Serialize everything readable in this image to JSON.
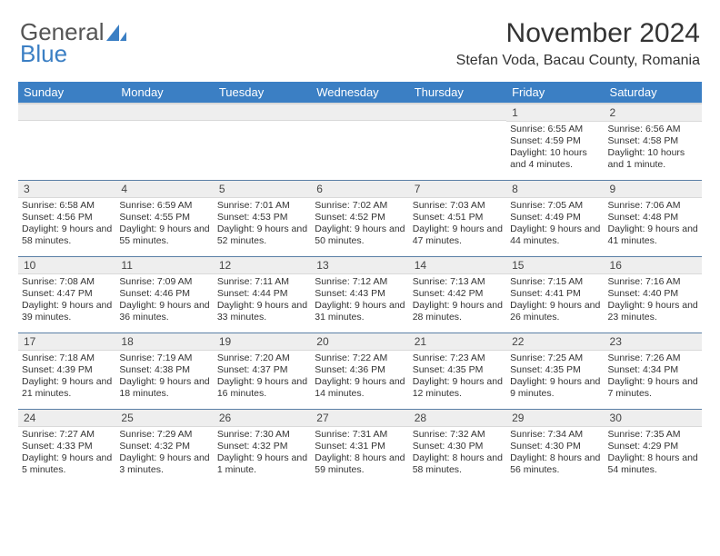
{
  "brand": {
    "part1": "General",
    "part2": "Blue"
  },
  "title": "November 2024",
  "location": "Stefan Voda, Bacau County, Romania",
  "colors": {
    "header_bg": "#3b7fc4",
    "header_text": "#ffffff",
    "daynum_bg": "#eeeeee",
    "row_divider": "#5a7fa6",
    "body_text": "#333333"
  },
  "dayHeaders": [
    "Sunday",
    "Monday",
    "Tuesday",
    "Wednesday",
    "Thursday",
    "Friday",
    "Saturday"
  ],
  "weeks": [
    [
      {
        "blank": true
      },
      {
        "blank": true
      },
      {
        "blank": true
      },
      {
        "blank": true
      },
      {
        "blank": true
      },
      {
        "num": "1",
        "sunrise": "6:55 AM",
        "sunset": "4:59 PM",
        "daylight": "10 hours and 4 minutes."
      },
      {
        "num": "2",
        "sunrise": "6:56 AM",
        "sunset": "4:58 PM",
        "daylight": "10 hours and 1 minute."
      }
    ],
    [
      {
        "num": "3",
        "sunrise": "6:58 AM",
        "sunset": "4:56 PM",
        "daylight": "9 hours and 58 minutes."
      },
      {
        "num": "4",
        "sunrise": "6:59 AM",
        "sunset": "4:55 PM",
        "daylight": "9 hours and 55 minutes."
      },
      {
        "num": "5",
        "sunrise": "7:01 AM",
        "sunset": "4:53 PM",
        "daylight": "9 hours and 52 minutes."
      },
      {
        "num": "6",
        "sunrise": "7:02 AM",
        "sunset": "4:52 PM",
        "daylight": "9 hours and 50 minutes."
      },
      {
        "num": "7",
        "sunrise": "7:03 AM",
        "sunset": "4:51 PM",
        "daylight": "9 hours and 47 minutes."
      },
      {
        "num": "8",
        "sunrise": "7:05 AM",
        "sunset": "4:49 PM",
        "daylight": "9 hours and 44 minutes."
      },
      {
        "num": "9",
        "sunrise": "7:06 AM",
        "sunset": "4:48 PM",
        "daylight": "9 hours and 41 minutes."
      }
    ],
    [
      {
        "num": "10",
        "sunrise": "7:08 AM",
        "sunset": "4:47 PM",
        "daylight": "9 hours and 39 minutes."
      },
      {
        "num": "11",
        "sunrise": "7:09 AM",
        "sunset": "4:46 PM",
        "daylight": "9 hours and 36 minutes."
      },
      {
        "num": "12",
        "sunrise": "7:11 AM",
        "sunset": "4:44 PM",
        "daylight": "9 hours and 33 minutes."
      },
      {
        "num": "13",
        "sunrise": "7:12 AM",
        "sunset": "4:43 PM",
        "daylight": "9 hours and 31 minutes."
      },
      {
        "num": "14",
        "sunrise": "7:13 AM",
        "sunset": "4:42 PM",
        "daylight": "9 hours and 28 minutes."
      },
      {
        "num": "15",
        "sunrise": "7:15 AM",
        "sunset": "4:41 PM",
        "daylight": "9 hours and 26 minutes."
      },
      {
        "num": "16",
        "sunrise": "7:16 AM",
        "sunset": "4:40 PM",
        "daylight": "9 hours and 23 minutes."
      }
    ],
    [
      {
        "num": "17",
        "sunrise": "7:18 AM",
        "sunset": "4:39 PM",
        "daylight": "9 hours and 21 minutes."
      },
      {
        "num": "18",
        "sunrise": "7:19 AM",
        "sunset": "4:38 PM",
        "daylight": "9 hours and 18 minutes."
      },
      {
        "num": "19",
        "sunrise": "7:20 AM",
        "sunset": "4:37 PM",
        "daylight": "9 hours and 16 minutes."
      },
      {
        "num": "20",
        "sunrise": "7:22 AM",
        "sunset": "4:36 PM",
        "daylight": "9 hours and 14 minutes."
      },
      {
        "num": "21",
        "sunrise": "7:23 AM",
        "sunset": "4:35 PM",
        "daylight": "9 hours and 12 minutes."
      },
      {
        "num": "22",
        "sunrise": "7:25 AM",
        "sunset": "4:35 PM",
        "daylight": "9 hours and 9 minutes."
      },
      {
        "num": "23",
        "sunrise": "7:26 AM",
        "sunset": "4:34 PM",
        "daylight": "9 hours and 7 minutes."
      }
    ],
    [
      {
        "num": "24",
        "sunrise": "7:27 AM",
        "sunset": "4:33 PM",
        "daylight": "9 hours and 5 minutes."
      },
      {
        "num": "25",
        "sunrise": "7:29 AM",
        "sunset": "4:32 PM",
        "daylight": "9 hours and 3 minutes."
      },
      {
        "num": "26",
        "sunrise": "7:30 AM",
        "sunset": "4:32 PM",
        "daylight": "9 hours and 1 minute."
      },
      {
        "num": "27",
        "sunrise": "7:31 AM",
        "sunset": "4:31 PM",
        "daylight": "8 hours and 59 minutes."
      },
      {
        "num": "28",
        "sunrise": "7:32 AM",
        "sunset": "4:30 PM",
        "daylight": "8 hours and 58 minutes."
      },
      {
        "num": "29",
        "sunrise": "7:34 AM",
        "sunset": "4:30 PM",
        "daylight": "8 hours and 56 minutes."
      },
      {
        "num": "30",
        "sunrise": "7:35 AM",
        "sunset": "4:29 PM",
        "daylight": "8 hours and 54 minutes."
      }
    ]
  ],
  "labels": {
    "sunrise": "Sunrise:",
    "sunset": "Sunset:",
    "daylight": "Daylight:"
  }
}
